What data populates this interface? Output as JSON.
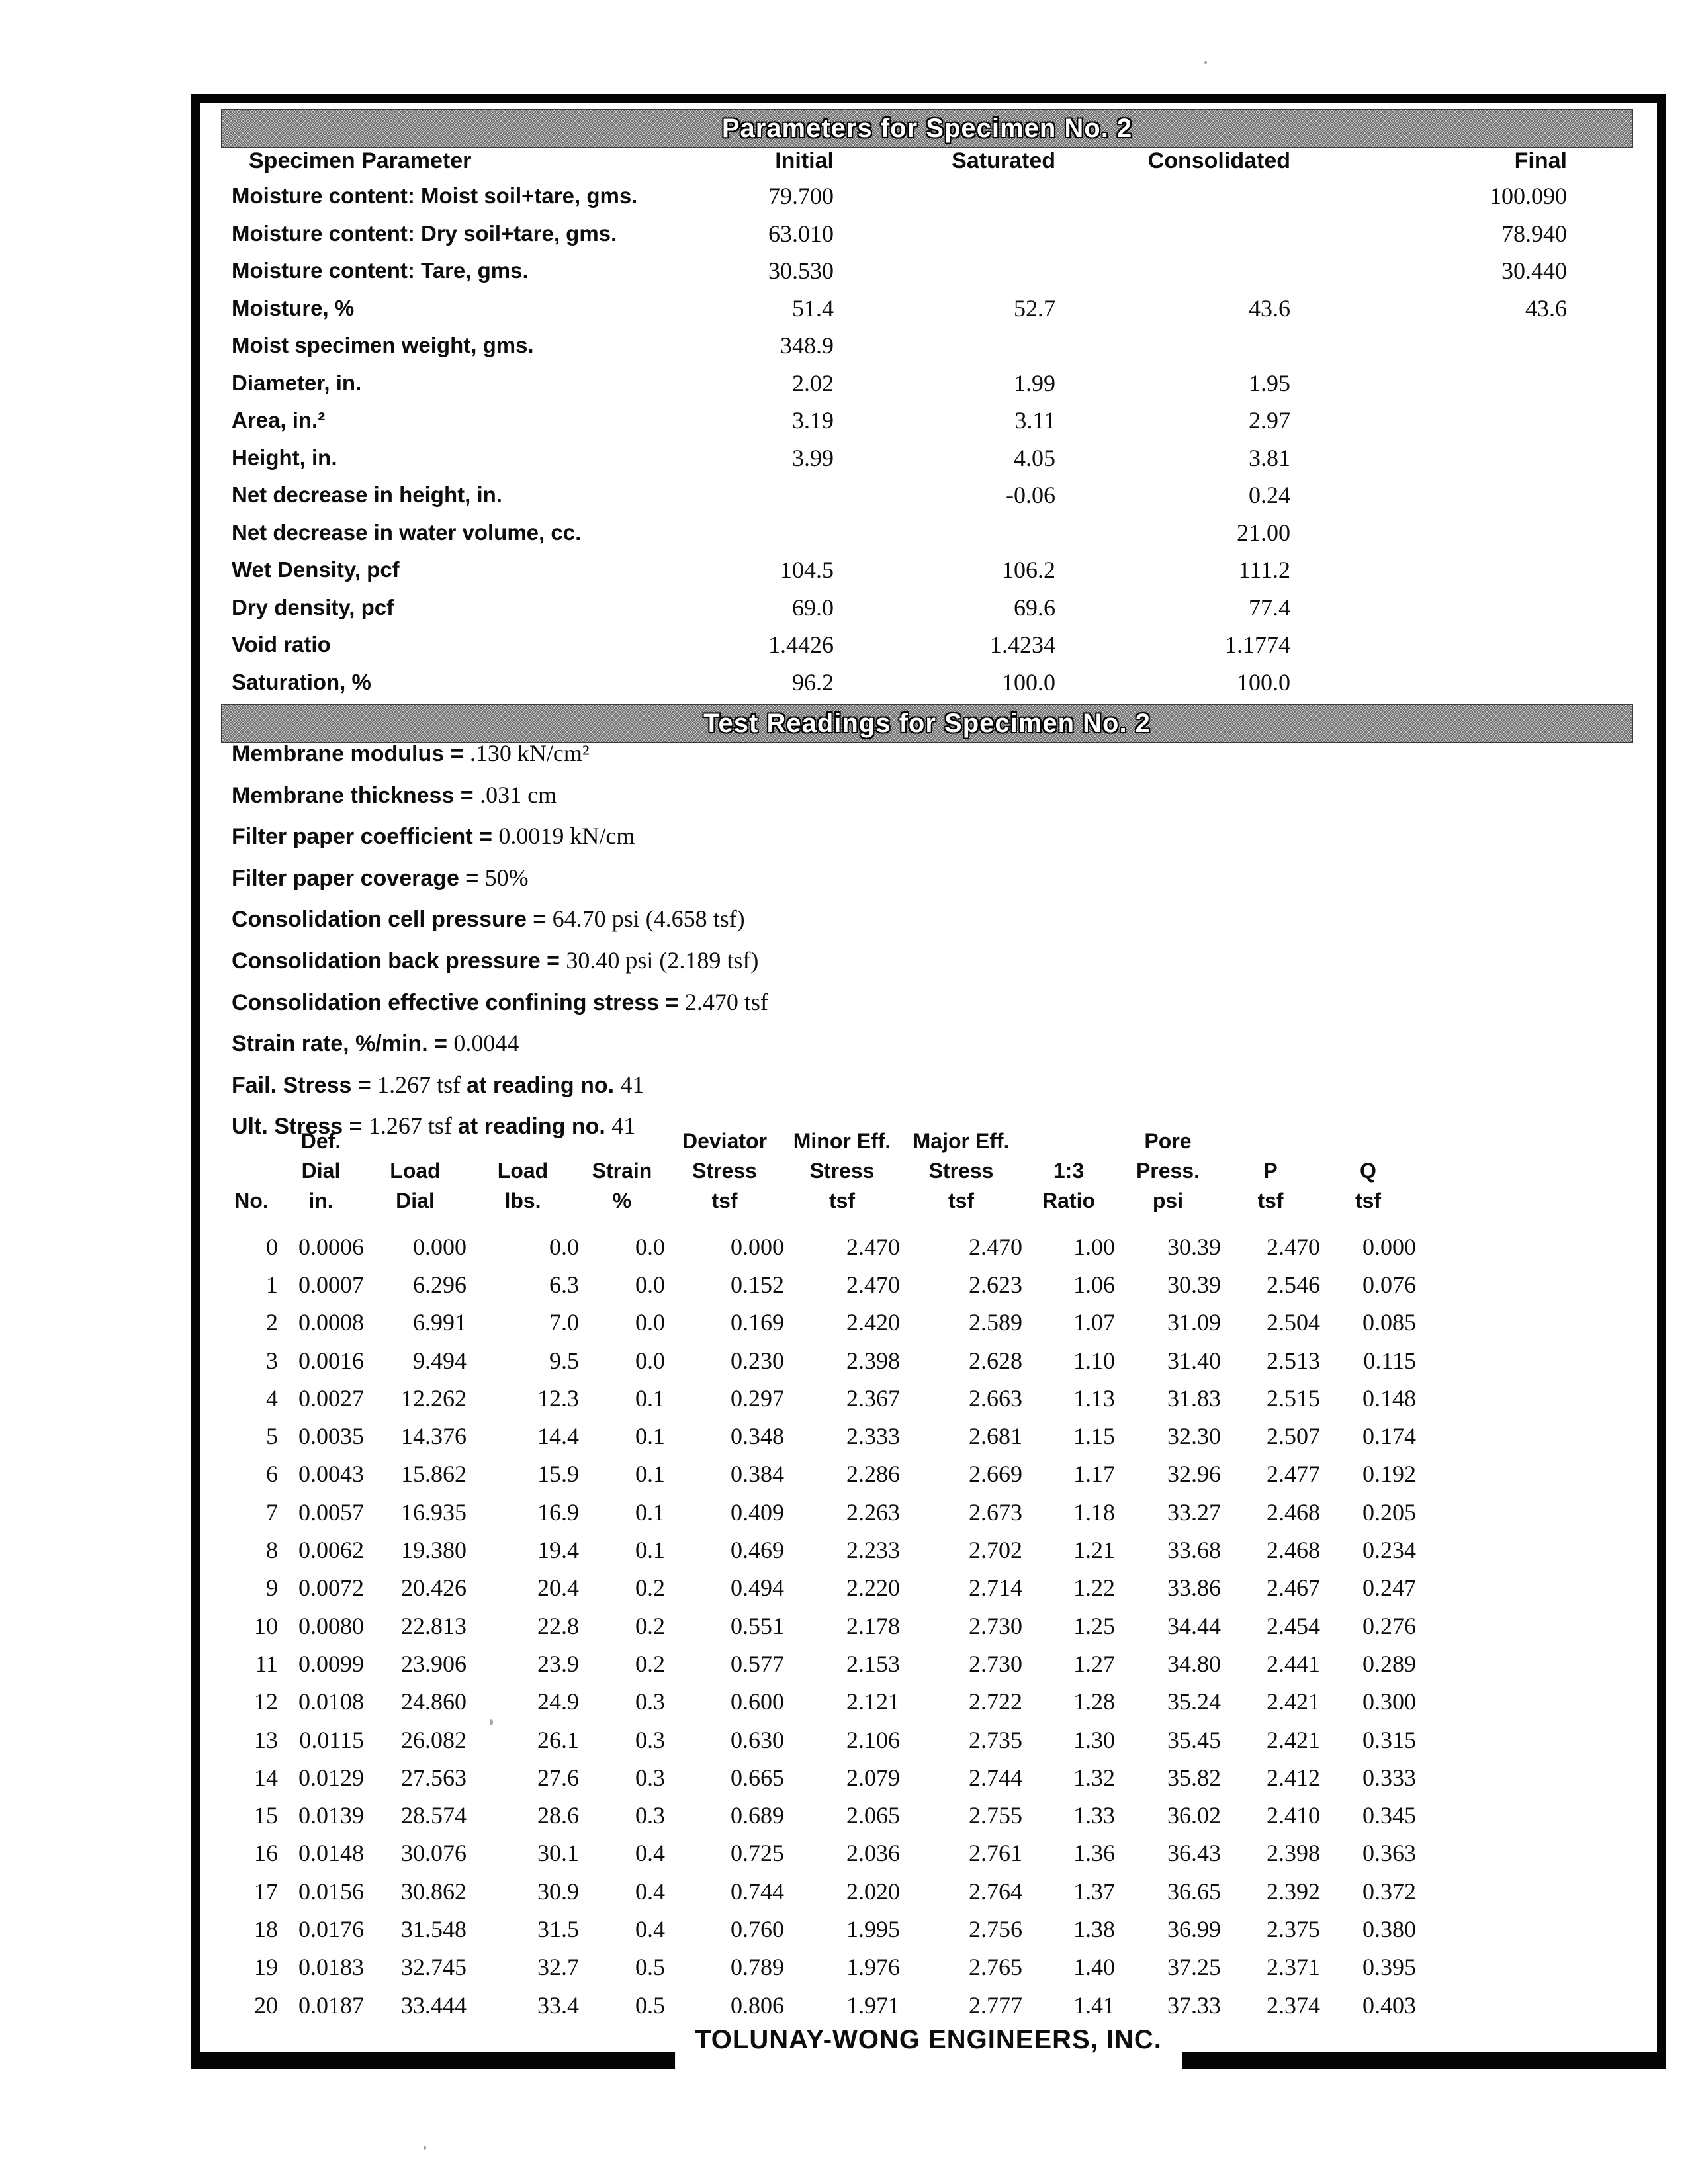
{
  "colors": {
    "paper": "#ffffff",
    "ink": "#0d0d0d",
    "titlebar_gray": "#9e9e9e",
    "titlebar_text": "#ffffff"
  },
  "sections": {
    "parameters_title": "Parameters for Specimen No. 2",
    "readings_title": "Test Readings for Specimen No. 2"
  },
  "footer": {
    "company": "TOLUNAY-WONG ENGINEERS, INC."
  },
  "parameters_table": {
    "headers": [
      "Specimen Parameter",
      "Initial",
      "Saturated",
      "Consolidated",
      "Final"
    ],
    "rows": [
      {
        "label": "Moisture content: Moist soil+tare, gms.",
        "initial": "79.700",
        "saturated": "",
        "consolidated": "",
        "final": "100.090"
      },
      {
        "label": "Moisture content: Dry soil+tare, gms.",
        "initial": "63.010",
        "saturated": "",
        "consolidated": "",
        "final": "78.940"
      },
      {
        "label": "Moisture content: Tare, gms.",
        "initial": "30.530",
        "saturated": "",
        "consolidated": "",
        "final": "30.440"
      },
      {
        "label": "Moisture, %",
        "initial": "51.4",
        "saturated": "52.7",
        "consolidated": "43.6",
        "final": "43.6"
      },
      {
        "label": "Moist specimen weight, gms.",
        "initial": "348.9",
        "saturated": "",
        "consolidated": "",
        "final": ""
      },
      {
        "label": "Diameter, in.",
        "initial": "2.02",
        "saturated": "1.99",
        "consolidated": "1.95",
        "final": ""
      },
      {
        "label": "Area, in.²",
        "initial": "3.19",
        "saturated": "3.11",
        "consolidated": "2.97",
        "final": ""
      },
      {
        "label": "Height, in.",
        "initial": "3.99",
        "saturated": "4.05",
        "consolidated": "3.81",
        "final": ""
      },
      {
        "label": "Net decrease in height, in.",
        "initial": "",
        "saturated": "-0.06",
        "consolidated": "0.24",
        "final": ""
      },
      {
        "label": "Net decrease in water volume, cc.",
        "initial": "",
        "saturated": "",
        "consolidated": "21.00",
        "final": ""
      },
      {
        "label": "Wet Density, pcf",
        "initial": "104.5",
        "saturated": "106.2",
        "consolidated": "111.2",
        "final": ""
      },
      {
        "label": "Dry density, pcf",
        "initial": "69.0",
        "saturated": "69.6",
        "consolidated": "77.4",
        "final": ""
      },
      {
        "label": "Void ratio",
        "initial": "1.4426",
        "saturated": "1.4234",
        "consolidated": "1.1774",
        "final": ""
      },
      {
        "label": "Saturation, %",
        "initial": "96.2",
        "saturated": "100.0",
        "consolidated": "100.0",
        "final": ""
      }
    ]
  },
  "test_conditions": [
    {
      "segments": [
        {
          "style": "label",
          "text": "Membrane modulus = "
        },
        {
          "style": "value",
          "text": ".130 kN/cm²"
        }
      ]
    },
    {
      "segments": [
        {
          "style": "label",
          "text": "Membrane thickness = "
        },
        {
          "style": "value",
          "text": ".031 cm"
        }
      ]
    },
    {
      "segments": [
        {
          "style": "label",
          "text": "Filter paper coefficient = "
        },
        {
          "style": "value",
          "text": "0.0019 kN/cm"
        }
      ]
    },
    {
      "segments": [
        {
          "style": "label",
          "text": "Filter paper coverage = "
        },
        {
          "style": "value",
          "text": "50%"
        }
      ]
    },
    {
      "segments": [
        {
          "style": "label",
          "text": "Consolidation cell pressure = "
        },
        {
          "style": "value",
          "text": "64.70 psi (4.658 tsf)"
        }
      ]
    },
    {
      "segments": [
        {
          "style": "label",
          "text": "Consolidation back pressure = "
        },
        {
          "style": "value",
          "text": "30.40 psi (2.189 tsf)"
        }
      ]
    },
    {
      "segments": [
        {
          "style": "label",
          "text": "Consolidation effective confining stress = "
        },
        {
          "style": "value",
          "text": "2.470 tsf"
        }
      ]
    },
    {
      "segments": [
        {
          "style": "label",
          "text": "Strain rate, %/min. = "
        },
        {
          "style": "value",
          "text": "0.0044"
        }
      ]
    },
    {
      "segments": [
        {
          "style": "label",
          "text": "Fail. Stress = "
        },
        {
          "style": "value",
          "text": "1.267 tsf "
        },
        {
          "style": "label",
          "text": "at reading no. "
        },
        {
          "style": "value",
          "text": "41"
        }
      ]
    },
    {
      "segments": [
        {
          "style": "label",
          "text": "Ult. Stress = "
        },
        {
          "style": "value",
          "text": "1.267 tsf "
        },
        {
          "style": "label",
          "text": "at reading no. "
        },
        {
          "style": "value",
          "text": "41"
        }
      ]
    }
  ],
  "readings_table": {
    "columns": [
      {
        "lines": [
          "",
          "",
          "No."
        ]
      },
      {
        "lines": [
          "Def.",
          "Dial",
          "in."
        ]
      },
      {
        "lines": [
          "",
          "Load",
          "Dial"
        ]
      },
      {
        "lines": [
          "",
          "Load",
          "lbs."
        ]
      },
      {
        "lines": [
          "",
          "Strain",
          "%"
        ]
      },
      {
        "lines": [
          "Deviator",
          "Stress",
          "tsf"
        ]
      },
      {
        "lines": [
          "Minor Eff.",
          "Stress",
          "tsf"
        ]
      },
      {
        "lines": [
          "Major Eff.",
          "Stress",
          "tsf"
        ]
      },
      {
        "lines": [
          "",
          "1:3",
          "Ratio"
        ]
      },
      {
        "lines": [
          "Pore",
          "Press.",
          "psi"
        ]
      },
      {
        "lines": [
          "",
          "P",
          "tsf"
        ]
      },
      {
        "lines": [
          "",
          "Q",
          "tsf"
        ]
      }
    ],
    "rows": [
      [
        "0",
        "0.0006",
        "0.000",
        "0.0",
        "0.0",
        "0.000",
        "2.470",
        "2.470",
        "1.00",
        "30.39",
        "2.470",
        "0.000"
      ],
      [
        "1",
        "0.0007",
        "6.296",
        "6.3",
        "0.0",
        "0.152",
        "2.470",
        "2.623",
        "1.06",
        "30.39",
        "2.546",
        "0.076"
      ],
      [
        "2",
        "0.0008",
        "6.991",
        "7.0",
        "0.0",
        "0.169",
        "2.420",
        "2.589",
        "1.07",
        "31.09",
        "2.504",
        "0.085"
      ],
      [
        "3",
        "0.0016",
        "9.494",
        "9.5",
        "0.0",
        "0.230",
        "2.398",
        "2.628",
        "1.10",
        "31.40",
        "2.513",
        "0.115"
      ],
      [
        "4",
        "0.0027",
        "12.262",
        "12.3",
        "0.1",
        "0.297",
        "2.367",
        "2.663",
        "1.13",
        "31.83",
        "2.515",
        "0.148"
      ],
      [
        "5",
        "0.0035",
        "14.376",
        "14.4",
        "0.1",
        "0.348",
        "2.333",
        "2.681",
        "1.15",
        "32.30",
        "2.507",
        "0.174"
      ],
      [
        "6",
        "0.0043",
        "15.862",
        "15.9",
        "0.1",
        "0.384",
        "2.286",
        "2.669",
        "1.17",
        "32.96",
        "2.477",
        "0.192"
      ],
      [
        "7",
        "0.0057",
        "16.935",
        "16.9",
        "0.1",
        "0.409",
        "2.263",
        "2.673",
        "1.18",
        "33.27",
        "2.468",
        "0.205"
      ],
      [
        "8",
        "0.0062",
        "19.380",
        "19.4",
        "0.1",
        "0.469",
        "2.233",
        "2.702",
        "1.21",
        "33.68",
        "2.468",
        "0.234"
      ],
      [
        "9",
        "0.0072",
        "20.426",
        "20.4",
        "0.2",
        "0.494",
        "2.220",
        "2.714",
        "1.22",
        "33.86",
        "2.467",
        "0.247"
      ],
      [
        "10",
        "0.0080",
        "22.813",
        "22.8",
        "0.2",
        "0.551",
        "2.178",
        "2.730",
        "1.25",
        "34.44",
        "2.454",
        "0.276"
      ],
      [
        "11",
        "0.0099",
        "23.906",
        "23.9",
        "0.2",
        "0.577",
        "2.153",
        "2.730",
        "1.27",
        "34.80",
        "2.441",
        "0.289"
      ],
      [
        "12",
        "0.0108",
        "24.860",
        "24.9",
        "0.3",
        "0.600",
        "2.121",
        "2.722",
        "1.28",
        "35.24",
        "2.421",
        "0.300"
      ],
      [
        "13",
        "0.0115",
        "26.082",
        "26.1",
        "0.3",
        "0.630",
        "2.106",
        "2.735",
        "1.30",
        "35.45",
        "2.421",
        "0.315"
      ],
      [
        "14",
        "0.0129",
        "27.563",
        "27.6",
        "0.3",
        "0.665",
        "2.079",
        "2.744",
        "1.32",
        "35.82",
        "2.412",
        "0.333"
      ],
      [
        "15",
        "0.0139",
        "28.574",
        "28.6",
        "0.3",
        "0.689",
        "2.065",
        "2.755",
        "1.33",
        "36.02",
        "2.410",
        "0.345"
      ],
      [
        "16",
        "0.0148",
        "30.076",
        "30.1",
        "0.4",
        "0.725",
        "2.036",
        "2.761",
        "1.36",
        "36.43",
        "2.398",
        "0.363"
      ],
      [
        "17",
        "0.0156",
        "30.862",
        "30.9",
        "0.4",
        "0.744",
        "2.020",
        "2.764",
        "1.37",
        "36.65",
        "2.392",
        "0.372"
      ],
      [
        "18",
        "0.0176",
        "31.548",
        "31.5",
        "0.4",
        "0.760",
        "1.995",
        "2.756",
        "1.38",
        "36.99",
        "2.375",
        "0.380"
      ],
      [
        "19",
        "0.0183",
        "32.745",
        "32.7",
        "0.5",
        "0.789",
        "1.976",
        "2.765",
        "1.40",
        "37.25",
        "2.371",
        "0.395"
      ],
      [
        "20",
        "0.0187",
        "33.444",
        "33.4",
        "0.5",
        "0.806",
        "1.971",
        "2.777",
        "1.41",
        "37.33",
        "2.374",
        "0.403"
      ]
    ]
  }
}
